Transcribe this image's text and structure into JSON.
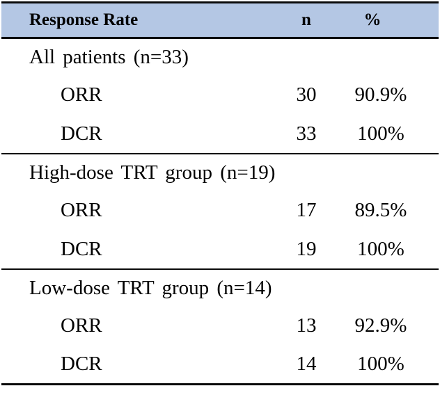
{
  "colors": {
    "header_bg": "#b4c7e4",
    "rule": "#0a0a0a",
    "text": "#000000"
  },
  "chart_data": {
    "type": "table",
    "title": "Response Rate",
    "columns": [
      "Response Rate",
      "n",
      "%"
    ],
    "sections": [
      {
        "title": "All patients (n=33)",
        "rows": [
          {
            "label": "ORR",
            "n": "30",
            "pct": "90.9%"
          },
          {
            "label": "DCR",
            "n": "33",
            "pct": "100%"
          }
        ]
      },
      {
        "title": "High-dose TRT group (n=19)",
        "rows": [
          {
            "label": "ORR",
            "n": "17",
            "pct": "89.5%"
          },
          {
            "label": "DCR",
            "n": "19",
            "pct": "100%"
          }
        ]
      },
      {
        "title": "Low-dose TRT group (n=14)",
        "rows": [
          {
            "label": "ORR",
            "n": "13",
            "pct": "92.9%"
          },
          {
            "label": "DCR",
            "n": "14",
            "pct": "100%"
          }
        ]
      }
    ]
  }
}
